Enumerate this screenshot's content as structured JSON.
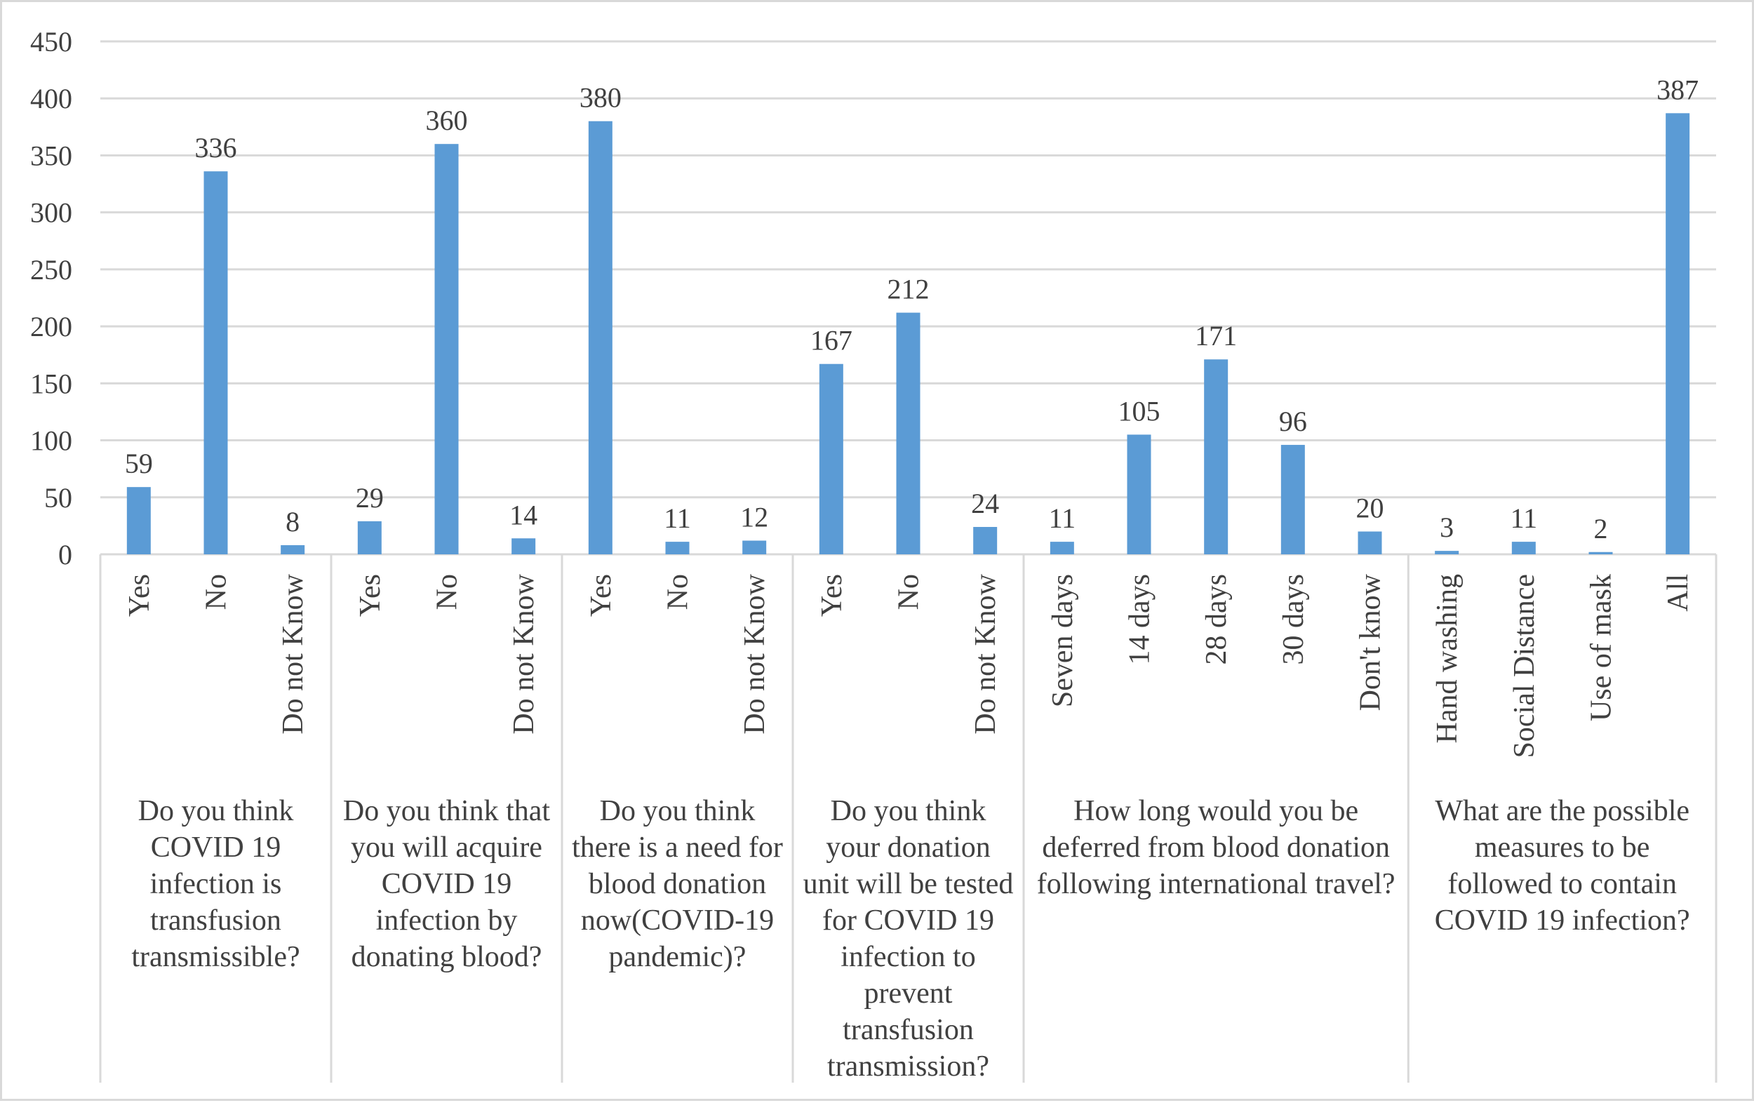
{
  "chart_data": {
    "type": "bar",
    "ylim": [
      0,
      450
    ],
    "y_ticks": [
      0,
      50,
      100,
      150,
      200,
      250,
      300,
      350,
      400,
      450
    ],
    "grid": true,
    "bar_color": "#5b9bd5",
    "groups": [
      {
        "label_lines": [
          "Do you think",
          "COVID 19",
          "infection is",
          "transfusion",
          "transmissible?"
        ],
        "categories": [
          "Yes",
          "No",
          "Do not Know"
        ],
        "values": [
          59,
          336,
          8
        ]
      },
      {
        "label_lines": [
          "Do you think that",
          "you will acquire",
          "COVID 19",
          "infection by",
          "donating blood?"
        ],
        "categories": [
          "Yes",
          "No",
          "Do not Know"
        ],
        "values": [
          29,
          360,
          14
        ]
      },
      {
        "label_lines": [
          "Do you think",
          "there is a need for",
          "blood donation",
          "now(COVID-19",
          "pandemic)?"
        ],
        "categories": [
          "Yes",
          "No",
          "Do not Know"
        ],
        "values": [
          380,
          11,
          12
        ]
      },
      {
        "label_lines": [
          "Do you think",
          "your donation",
          "unit will be tested",
          "for COVID 19",
          "infection to",
          "prevent",
          "transfusion",
          "transmission?"
        ],
        "categories": [
          "Yes",
          "No",
          "Do not Know"
        ],
        "values": [
          167,
          212,
          24
        ]
      },
      {
        "label_lines": [
          "How long would you be",
          "deferred from blood donation",
          "following international travel?"
        ],
        "categories": [
          "Seven days",
          "14 days",
          "28 days",
          "30 days",
          "Don't know"
        ],
        "values": [
          11,
          105,
          171,
          96,
          20
        ]
      },
      {
        "label_lines": [
          "What are the possible",
          "measures to be",
          "followed to contain",
          "COVID 19 infection?"
        ],
        "categories": [
          "Hand washing",
          "Social Distance",
          "Use of mask",
          "All"
        ],
        "values": [
          3,
          11,
          2,
          387
        ]
      }
    ]
  }
}
